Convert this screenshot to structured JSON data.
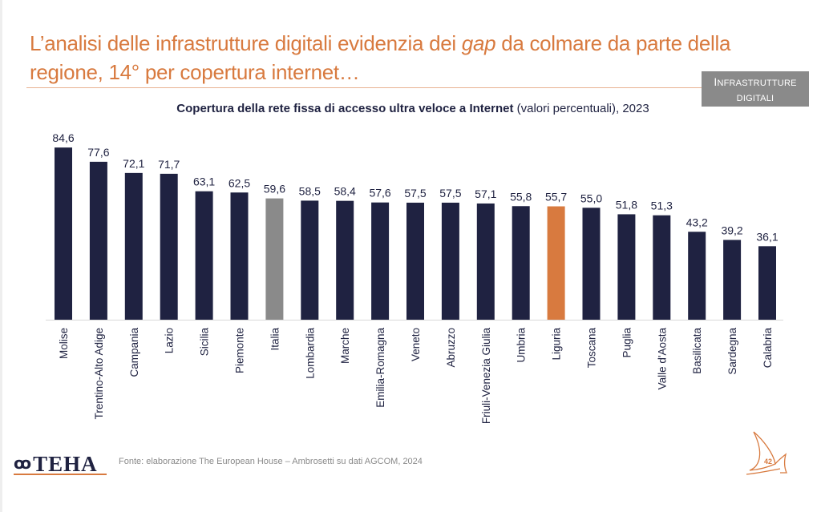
{
  "header": {
    "title_part1": "L’analisi delle infrastrutture digitali evidenzia dei ",
    "title_italic": "gap",
    "title_part2": " da colmare da parte della regione, 14° per copertura internet…",
    "tag_line1_initial": "I",
    "tag_line1_rest": "NFRASTRUTTURE",
    "tag_line2": "DIGITALI"
  },
  "chart_subtitle": {
    "bold": "Copertura della rete fissa di accesso ultra veloce a Internet",
    "normal": " (valori percentuali), 2023"
  },
  "colors": {
    "title": "#d87a3f",
    "bar_default": "#1f2241",
    "bar_national": "#8a8a8a",
    "bar_highlight": "#d87a3f",
    "label": "#1f2241"
  },
  "chart_data": {
    "type": "bar",
    "title": "Copertura della rete fissa di accesso ultra veloce a Internet (valori percentuali), 2023",
    "xlabel": "",
    "ylabel": "",
    "ylim": [
      0,
      84.6
    ],
    "grid": false,
    "legend": "none",
    "categories": [
      "Molise",
      "Trentino-Alto Adige",
      "Campania",
      "Lazio",
      "Sicilia",
      "Piemonte",
      "Italia",
      "Lombardia",
      "Marche",
      "Emilia-Romagna",
      "Veneto",
      "Abruzzo",
      "Friuli-Venezia Giulia",
      "Umbria",
      "Liguria",
      "Toscana",
      "Puglia",
      "Valle d'Aosta",
      "Basilicata",
      "Sardegna",
      "Calabria"
    ],
    "values": [
      84.6,
      77.6,
      72.1,
      71.7,
      63.1,
      62.5,
      59.6,
      58.5,
      58.4,
      57.6,
      57.5,
      57.5,
      57.1,
      55.8,
      55.7,
      55.0,
      51.8,
      51.3,
      43.2,
      39.2,
      36.1
    ],
    "value_labels": [
      "84,6",
      "77,6",
      "72,1",
      "71,7",
      "63,1",
      "62,5",
      "59,6",
      "58,5",
      "58,4",
      "57,6",
      "57,5",
      "57,5",
      "57,1",
      "55,8",
      "55,7",
      "55,0",
      "51,8",
      "51,3",
      "43,2",
      "39,2",
      "36,1"
    ],
    "highlight": {
      "Italia": "national",
      "Liguria": "highlight"
    }
  },
  "footer": {
    "source": "Fonte: elaborazione The European House – Ambrosetti su dati AGCOM, 2024",
    "logo_text": "TEHA",
    "logo_mark": "ꝏ",
    "page_number": "42"
  }
}
